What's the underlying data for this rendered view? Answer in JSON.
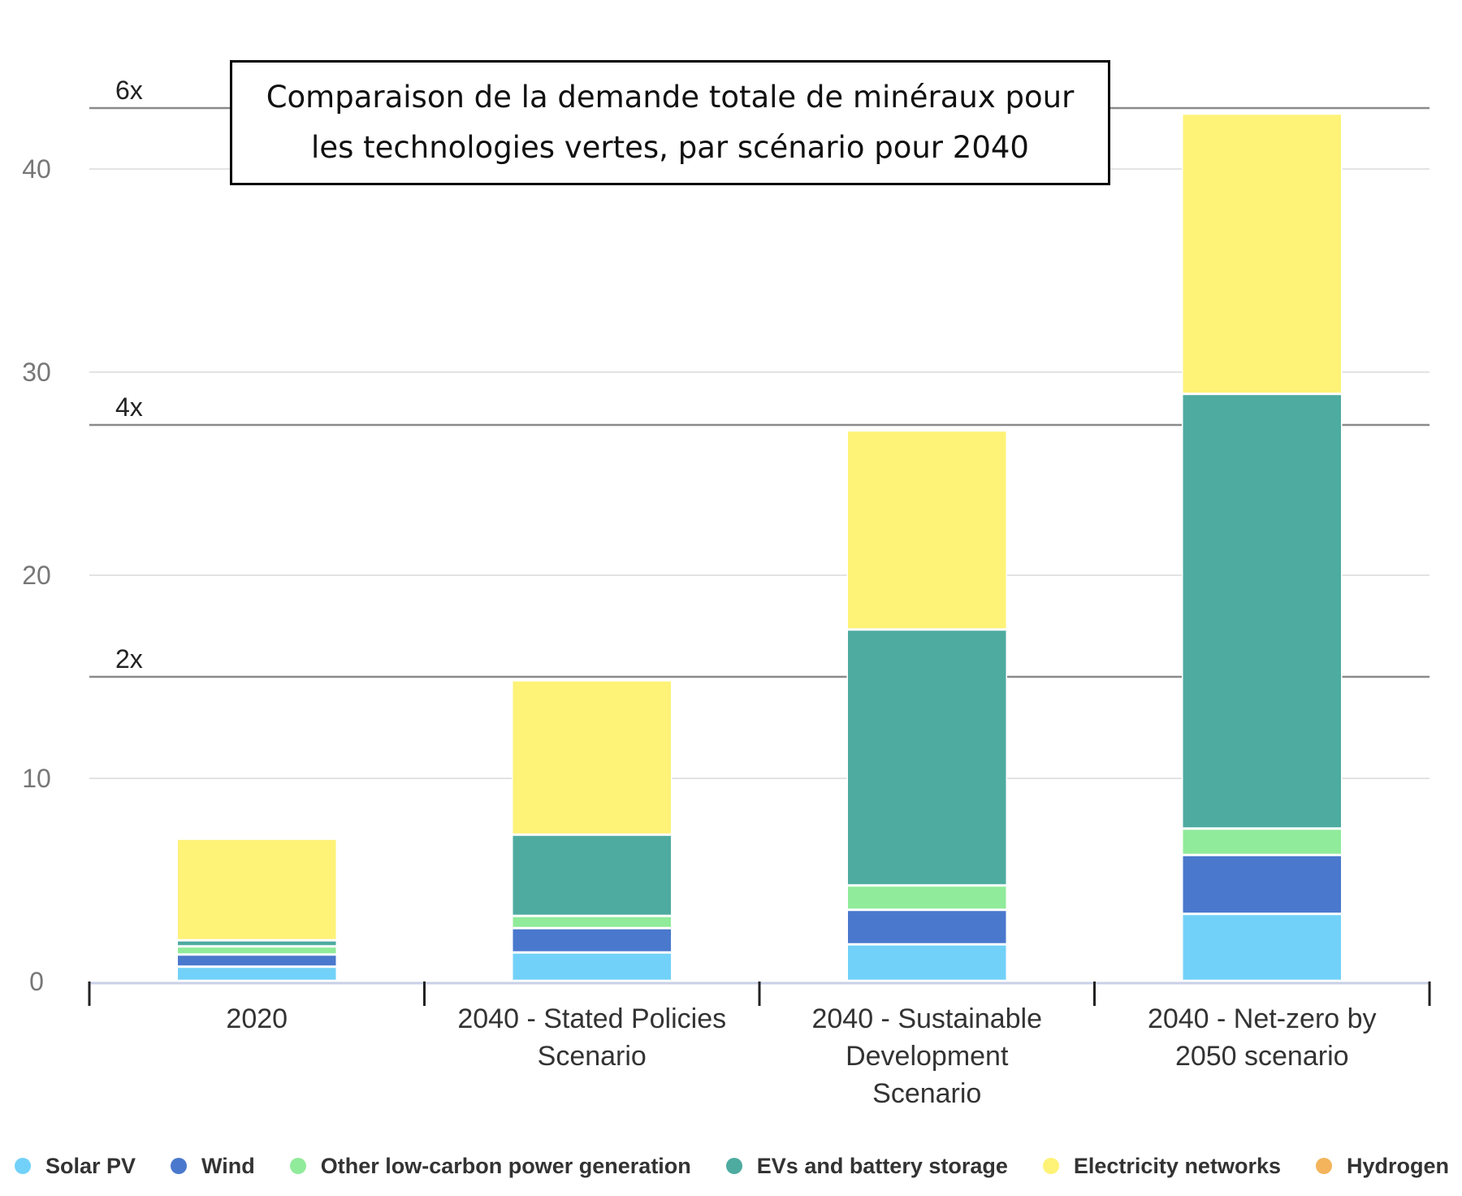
{
  "chart_data": {
    "type": "bar",
    "stacked": true,
    "title": "Comparaison de la demande totale de minéraux pour les technologies vertes, par scénario pour 2040",
    "categories": [
      [
        "2020"
      ],
      [
        "2040 - Stated Policies",
        "Scenario"
      ],
      [
        "2040 - Sustainable",
        "Development",
        "Scenario"
      ],
      [
        "2040 - Net-zero by",
        "2050 scenario"
      ]
    ],
    "series": [
      {
        "name": "Solar PV",
        "color": "#72d1f8",
        "values": [
          0.7,
          1.4,
          1.8,
          3.3
        ]
      },
      {
        "name": "Wind",
        "color": "#4a78cd",
        "values": [
          0.6,
          1.2,
          1.7,
          2.9
        ]
      },
      {
        "name": "Other low-carbon power generation",
        "color": "#90eb9a",
        "values": [
          0.4,
          0.6,
          1.2,
          1.3
        ]
      },
      {
        "name": "EVs and battery storage",
        "color": "#4eaba0",
        "values": [
          0.3,
          4.0,
          12.6,
          21.4
        ]
      },
      {
        "name": "Electricity networks",
        "color": "#fef277",
        "values": [
          5.0,
          7.6,
          9.8,
          13.8
        ]
      },
      {
        "name": "Hydrogen",
        "color": "#f3b45c",
        "values": [
          0,
          0,
          0,
          0
        ]
      }
    ],
    "yticks": [
      0,
      10,
      20,
      30,
      40
    ],
    "ylim": [
      0,
      44
    ],
    "reference_lines": [
      {
        "label": "2x",
        "value": 15.0
      },
      {
        "label": "4x",
        "value": 27.4
      },
      {
        "label": "6x",
        "value": 43.0
      }
    ],
    "grid": true,
    "legend_position": "bottom"
  }
}
